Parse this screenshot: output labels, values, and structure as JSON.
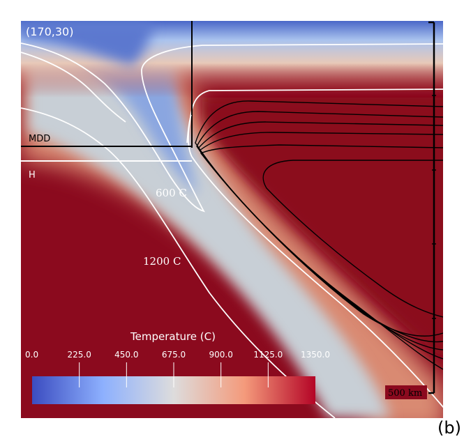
{
  "corner_label": "(170,30)",
  "panel_letter": "(b)",
  "line_labels": {
    "mdd": "MDD",
    "h": "H",
    "iso_600": "600 C",
    "iso_1200": "1200 C"
  },
  "scale_bar": {
    "label": "500 km"
  },
  "colorbar": {
    "title": "Temperature (C)",
    "range": [
      0,
      1350
    ],
    "ticks": [
      "0.0",
      "225.0",
      "450.0",
      "675.0",
      "900.0",
      "1125.0",
      "1350.0"
    ],
    "colors": [
      "#3b4cc0",
      "#8db0fe",
      "#dddcdc",
      "#f49a7b",
      "#b40426"
    ]
  },
  "colors": {
    "hot_mantle": "#8b0a1e",
    "isotherm": "#ffffff",
    "streamline": "#000000"
  }
}
